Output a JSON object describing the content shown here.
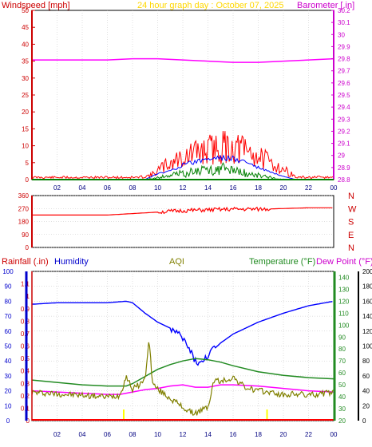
{
  "header": {
    "left": "Windspeed [mph]",
    "center": "24 hour graph day : October 07, 2025",
    "right": "Barometer [.in]"
  },
  "lower_header": {
    "rainfall": "Rainfall (.in)",
    "humidity": "Humidity",
    "aqi": "AQI",
    "temperature": "Temperature (°F)",
    "dewpoint": "Dew Point (°F)"
  },
  "colors": {
    "wind_gust": "#ff0000",
    "wind_avg": "#0000ff",
    "wind_speed": "#008000",
    "barometer": "#ff00ff",
    "direction": "#ff0000",
    "humidity": "#0000ff",
    "temperature": "#228b22",
    "dewpoint": "#ff00ff",
    "aqi": "#808000",
    "rain": "#ff0000",
    "rain_marker": "#ffff00",
    "grid": "#c0c0c0"
  },
  "chart_data": [
    {
      "type": "line",
      "name": "wind-barometer",
      "x_ticks": [
        "02",
        "04",
        "06",
        "08",
        "10",
        "12",
        "14",
        "16",
        "18",
        "20",
        "22",
        "00"
      ],
      "x_range": [
        0,
        24
      ],
      "y_left_ticks": [
        "0",
        "5",
        "10",
        "15",
        "20",
        "25",
        "30",
        "35",
        "40",
        "45",
        "50"
      ],
      "y_left_range": [
        0,
        50
      ],
      "y_right_ticks": [
        "28.8",
        "28.9",
        "29",
        "29.1",
        "29.2",
        "29.3",
        "29.4",
        "29.5",
        "29.6",
        "29.7",
        "29.8",
        "29.9",
        "30",
        "30.1",
        "30.2"
      ],
      "y_right_range": [
        28.8,
        30.2
      ],
      "barometer": {
        "x": [
          0,
          4,
          6,
          8,
          10,
          12,
          14,
          16,
          18,
          20,
          22,
          24
        ],
        "y": [
          29.79,
          29.79,
          29.79,
          29.8,
          29.8,
          29.79,
          29.78,
          29.77,
          29.77,
          29.78,
          29.79,
          29.8
        ]
      },
      "gust_envelope": {
        "x": [
          0,
          8.5,
          9.5,
          10.5,
          11.5,
          12.5,
          13.5,
          14.5,
          15.5,
          16.5,
          17.5,
          18.5,
          19.5,
          20.5,
          21,
          24
        ],
        "y": [
          1,
          1,
          2,
          6,
          9,
          11,
          13,
          14,
          15,
          14,
          12,
          9,
          6,
          3,
          1,
          1
        ]
      },
      "avg_envelope": {
        "x": [
          0,
          9,
          10,
          11,
          12,
          13,
          14,
          15,
          16,
          17,
          18,
          19,
          20,
          21,
          24
        ],
        "y": [
          0,
          0,
          2,
          3,
          5,
          6,
          7,
          7.5,
          7,
          6,
          4,
          2.5,
          1,
          0,
          0
        ]
      },
      "speed_envelope": {
        "x": [
          0,
          9,
          10,
          11,
          12,
          13,
          14,
          15,
          16,
          17,
          18,
          19,
          20,
          24
        ],
        "y": [
          0,
          0,
          1,
          2,
          3,
          4,
          4.5,
          5,
          4.5,
          3,
          2,
          1,
          0,
          0
        ]
      }
    },
    {
      "type": "line",
      "name": "wind-direction",
      "x_range": [
        0,
        24
      ],
      "y_ticks": [
        "0",
        "90",
        "180",
        "270",
        "360"
      ],
      "y_range": [
        0,
        360
      ],
      "compass_labels": [
        "N",
        "W",
        "S",
        "E",
        "N"
      ],
      "direction": {
        "x": [
          0,
          6,
          8,
          10,
          12,
          14,
          16,
          18,
          20,
          22,
          24
        ],
        "y": [
          225,
          225,
          235,
          245,
          255,
          260,
          265,
          265,
          270,
          275,
          275
        ]
      }
    },
    {
      "type": "line",
      "name": "humidity-temperature",
      "x_ticks": [
        "02",
        "04",
        "06",
        "08",
        "10",
        "12",
        "14",
        "16",
        "18",
        "20",
        "22",
        "00"
      ],
      "x_range": [
        0,
        24
      ],
      "humidity_ticks": [
        "0",
        "10",
        "20",
        "30",
        "40",
        "50",
        "60",
        "70",
        "80",
        "90",
        "100"
      ],
      "humidity_range": [
        0,
        100
      ],
      "rain_ticks": [
        "0",
        "0.1",
        "0.2",
        "0.3",
        "0.4",
        "0.5",
        "0.6",
        "0.7",
        "0.8",
        "0.9",
        "1",
        "1.1"
      ],
      "rain_range": [
        0,
        1.2
      ],
      "temp_ticks": [
        "20",
        "30",
        "40",
        "50",
        "60",
        "70",
        "80",
        "90",
        "100",
        "110",
        "120",
        "130",
        "140"
      ],
      "temp_range": [
        20,
        145
      ],
      "aqi_ticks": [
        "0",
        "20",
        "40",
        "60",
        "80",
        "100",
        "120",
        "140",
        "160",
        "180",
        "200"
      ],
      "aqi_range": [
        0,
        200
      ],
      "humidity": {
        "x": [
          0,
          2,
          4,
          6,
          7.5,
          8,
          9,
          10,
          11,
          12,
          12.5,
          13,
          13.5,
          14,
          15,
          16,
          18,
          20,
          22,
          24
        ],
        "y": [
          78,
          79,
          79,
          79,
          80,
          79,
          72,
          66,
          62,
          55,
          48,
          40,
          38,
          44,
          52,
          58,
          66,
          72,
          77,
          80
        ]
      },
      "temperature": {
        "x": [
          0,
          2,
          4,
          6,
          7.5,
          8,
          9,
          10,
          11,
          12,
          13,
          14,
          15,
          16,
          18,
          20,
          22,
          24
        ],
        "y": [
          54,
          52,
          50,
          49,
          49,
          51,
          57,
          63,
          67,
          70,
          72,
          71,
          69,
          66,
          61,
          58,
          56,
          55
        ]
      },
      "dewpoint": {
        "x": [
          0,
          2,
          4,
          6,
          7,
          8,
          9,
          10,
          11,
          12,
          13,
          14,
          15,
          16,
          18,
          20,
          22,
          24
        ],
        "y": [
          45,
          44,
          43,
          42,
          42,
          44,
          46,
          47,
          49,
          50,
          48,
          48,
          50,
          50,
          49,
          47,
          45,
          44
        ]
      },
      "aqi": {
        "x": [
          0,
          2,
          4,
          6,
          7,
          7.5,
          8,
          8.5,
          9,
          9.3,
          9.6,
          10,
          11,
          12,
          12.5,
          13,
          14,
          14.5,
          15,
          16,
          17,
          18,
          19,
          20,
          21,
          22,
          23,
          24
        ],
        "y": [
          38,
          36,
          34,
          32,
          34,
          60,
          42,
          48,
          55,
          110,
          50,
          42,
          30,
          18,
          12,
          10,
          18,
          55,
          52,
          58,
          44,
          40,
          38,
          34,
          36,
          34,
          36,
          38
        ]
      },
      "rain": {
        "x": [
          0,
          24
        ],
        "y": [
          0,
          0
        ]
      },
      "markers_x": [
        7.3,
        18.7
      ]
    }
  ]
}
